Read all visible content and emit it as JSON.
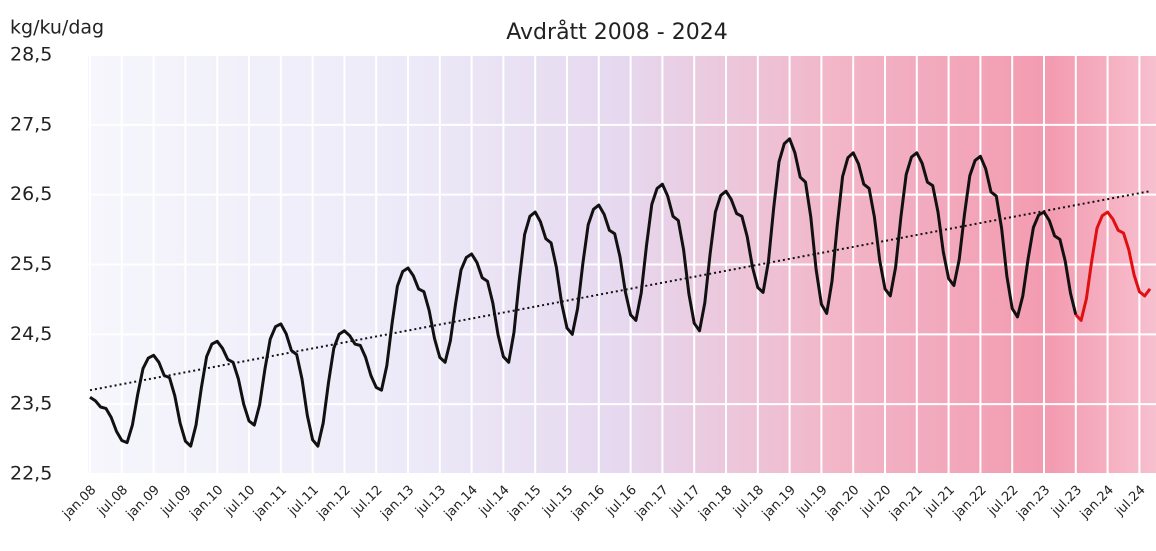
{
  "chart_data": {
    "type": "line",
    "title": "Avdrått 2008 - 2024",
    "y_label": "kg/ku/dag",
    "categories": [
      "jan.08",
      null,
      null,
      null,
      null,
      null,
      "jul.08",
      null,
      null,
      null,
      null,
      null,
      "jan.09",
      null,
      null,
      null,
      null,
      null,
      "jul.09",
      null,
      null,
      null,
      null,
      null,
      "jan.10",
      null,
      null,
      null,
      null,
      null,
      "jul.10",
      null,
      null,
      null,
      null,
      null,
      "jan.11",
      null,
      null,
      null,
      null,
      null,
      "jul.11",
      null,
      null,
      null,
      null,
      null,
      "jan.12",
      null,
      null,
      null,
      null,
      null,
      "jul.12",
      null,
      null,
      null,
      null,
      null,
      "jan.13",
      null,
      null,
      null,
      null,
      null,
      "jul.13",
      null,
      null,
      null,
      null,
      null,
      "jan.14",
      null,
      null,
      null,
      null,
      null,
      "jul.14",
      null,
      null,
      null,
      null,
      null,
      "jan.15",
      null,
      null,
      null,
      null,
      null,
      "jul.15",
      null,
      null,
      null,
      null,
      null,
      "jan.16",
      null,
      null,
      null,
      null,
      null,
      "jul.16",
      null,
      null,
      null,
      null,
      null,
      "jan.17",
      null,
      null,
      null,
      null,
      null,
      "jul.17",
      null,
      null,
      null,
      null,
      null,
      "jan.18",
      null,
      null,
      null,
      null,
      null,
      "jul.18",
      null,
      null,
      null,
      null,
      null,
      "jan.19",
      null,
      null,
      null,
      null,
      null,
      "jul.19",
      null,
      null,
      null,
      null,
      null,
      "jan.20",
      null,
      null,
      null,
      null,
      null,
      "jul.20",
      null,
      null,
      null,
      null,
      null,
      "jan.21",
      null,
      null,
      null,
      null,
      null,
      "jul.21",
      null,
      null,
      null,
      null,
      null,
      "jan.22",
      null,
      null,
      null,
      null,
      null,
      "jul.22",
      null,
      null,
      null,
      null,
      null,
      "jan.23",
      null,
      null,
      null,
      null,
      null,
      "jul.23",
      null,
      null,
      null,
      null,
      null,
      "jan.24",
      null,
      null,
      null,
      null,
      null,
      "jul.24",
      null,
      null
    ],
    "series": [
      {
        "color": "#111111",
        "values": [
          23.6,
          23.55,
          23.46,
          23.44,
          23.31,
          23.11,
          22.98,
          22.95,
          23.2,
          23.64,
          24.01,
          24.16,
          24.2,
          24.1,
          23.91,
          23.88,
          23.62,
          23.23,
          22.97,
          22.9,
          23.2,
          23.73,
          24.18,
          24.36,
          24.4,
          24.3,
          24.14,
          24.1,
          23.86,
          23.5,
          23.26,
          23.2,
          23.49,
          24.0,
          24.43,
          24.61,
          24.65,
          24.51,
          24.27,
          24.21,
          23.86,
          23.34,
          22.99,
          22.9,
          23.23,
          23.81,
          24.3,
          24.5,
          24.55,
          24.48,
          24.36,
          24.34,
          24.17,
          23.91,
          23.74,
          23.7,
          24.05,
          24.66,
          25.19,
          25.4,
          25.45,
          25.34,
          25.15,
          25.11,
          24.84,
          24.44,
          24.17,
          24.1,
          24.41,
          24.95,
          25.42,
          25.6,
          25.65,
          25.53,
          25.31,
          25.26,
          24.95,
          24.49,
          24.18,
          24.1,
          24.53,
          25.28,
          25.93,
          26.19,
          26.25,
          26.11,
          25.87,
          25.81,
          25.46,
          24.94,
          24.59,
          24.5,
          24.87,
          25.52,
          26.07,
          26.29,
          26.35,
          26.22,
          25.99,
          25.94,
          25.61,
          25.11,
          24.78,
          24.7,
          25.09,
          25.77,
          26.36,
          26.59,
          26.65,
          26.48,
          26.19,
          26.13,
          25.71,
          25.08,
          24.66,
          24.55,
          24.95,
          25.65,
          26.25,
          26.49,
          26.55,
          26.43,
          26.23,
          26.19,
          25.9,
          25.46,
          25.17,
          25.1,
          25.54,
          26.31,
          26.97,
          27.23,
          27.3,
          27.1,
          26.75,
          26.68,
          26.18,
          25.43,
          24.93,
          24.8,
          25.26,
          26.07,
          26.76,
          27.03,
          27.1,
          26.94,
          26.65,
          26.59,
          26.18,
          25.56,
          25.15,
          25.05,
          25.46,
          26.18,
          26.79,
          27.04,
          27.1,
          26.95,
          26.68,
          26.63,
          26.25,
          25.68,
          25.3,
          25.2,
          25.57,
          26.22,
          26.77,
          26.99,
          27.05,
          26.87,
          26.54,
          26.48,
          26.02,
          25.33,
          24.87,
          24.75,
          25.05,
          25.58,
          26.03,
          26.21,
          26.25,
          26.13,
          25.91,
          25.86,
          25.55,
          25.09,
          24.78,
          null,
          null,
          null,
          null,
          null,
          null,
          null,
          null,
          null,
          null,
          null,
          null,
          null,
          null
        ]
      },
      {
        "color": "#e01010",
        "values": [
          null,
          null,
          null,
          null,
          null,
          null,
          null,
          null,
          null,
          null,
          null,
          null,
          null,
          null,
          null,
          null,
          null,
          null,
          null,
          null,
          null,
          null,
          null,
          null,
          null,
          null,
          null,
          null,
          null,
          null,
          null,
          null,
          null,
          null,
          null,
          null,
          null,
          null,
          null,
          null,
          null,
          null,
          null,
          null,
          null,
          null,
          null,
          null,
          null,
          null,
          null,
          null,
          null,
          null,
          null,
          null,
          null,
          null,
          null,
          null,
          null,
          null,
          null,
          null,
          null,
          null,
          null,
          null,
          null,
          null,
          null,
          null,
          null,
          null,
          null,
          null,
          null,
          null,
          null,
          null,
          null,
          null,
          null,
          null,
          null,
          null,
          null,
          null,
          null,
          null,
          null,
          null,
          null,
          null,
          null,
          null,
          null,
          null,
          null,
          null,
          null,
          null,
          null,
          null,
          null,
          null,
          null,
          null,
          null,
          null,
          null,
          null,
          null,
          null,
          null,
          null,
          null,
          null,
          null,
          null,
          null,
          null,
          null,
          null,
          null,
          null,
          null,
          null,
          null,
          null,
          null,
          null,
          null,
          null,
          null,
          null,
          null,
          null,
          null,
          null,
          null,
          null,
          null,
          null,
          null,
          null,
          null,
          null,
          null,
          null,
          null,
          null,
          null,
          null,
          null,
          null,
          null,
          null,
          null,
          null,
          null,
          null,
          null,
          null,
          null,
          null,
          null,
          null,
          null,
          null,
          null,
          null,
          null,
          null,
          null,
          null,
          null,
          null,
          null,
          null,
          null,
          null,
          null,
          null,
          null,
          null,
          24.78,
          24.7,
          25.01,
          25.55,
          26.02,
          26.2,
          26.25,
          26.15,
          25.99,
          25.95,
          25.71,
          25.35,
          25.11,
          25.05,
          25.15
        ]
      }
    ],
    "trend": {
      "values": [
        23.7,
        26.55
      ],
      "color": "#111111"
    },
    "ylim": [
      22.5,
      28.5
    ],
    "yticks": [
      {
        "value": 22.5,
        "label": "22,5"
      },
      {
        "value": 23.5,
        "label": "23,5"
      },
      {
        "value": 24.5,
        "label": "24,5"
      },
      {
        "value": 25.5,
        "label": "25,5"
      },
      {
        "value": 26.5,
        "label": "26,5"
      },
      {
        "value": 27.5,
        "label": "27,5"
      },
      {
        "value": 28.5,
        "label": "28,5"
      }
    ],
    "grid": true
  }
}
